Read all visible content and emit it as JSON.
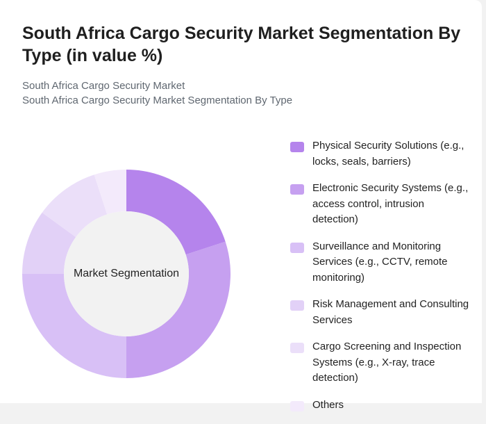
{
  "header": {
    "title": "South Africa Cargo Security Market Segmentation By Type (in value %)",
    "subtitle_line1": "South Africa Cargo Security Market",
    "subtitle_line2": "South Africa Cargo Security Market Segmentation By Type"
  },
  "chart_data": {
    "type": "pie",
    "center_label": "Market Segmentation",
    "categories": [
      "Physical Security Solutions (e.g., locks, seals, barriers)",
      "Electronic Security Systems (e.g., access control, intrusion detection)",
      "Surveillance and Monitoring Services (e.g., CCTV, remote monitoring)",
      "Risk Management and Consulting Services",
      "Cargo Screening and Inspection Systems (e.g., X-ray, trace detection)",
      "Others"
    ],
    "values": [
      20,
      30,
      25,
      10,
      10,
      5
    ],
    "colors": [
      "#b584ec",
      "#c6a0f0",
      "#d8c0f6",
      "#e2d1f7",
      "#ebdff9",
      "#f3eafb"
    ],
    "legend_position": "right"
  }
}
